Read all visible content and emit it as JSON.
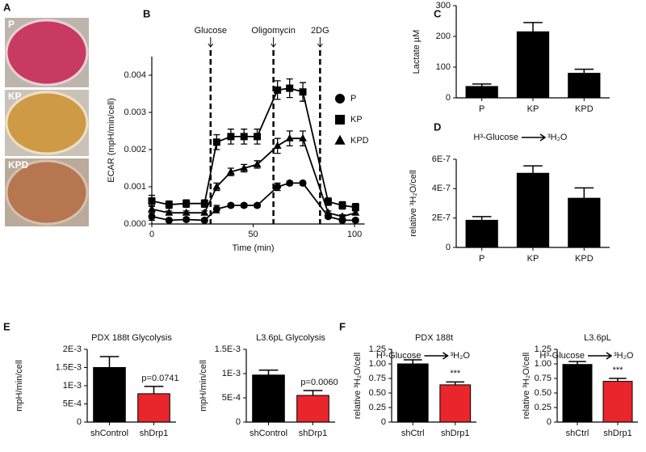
{
  "panels": [
    "A",
    "B",
    "C",
    "D",
    "E",
    "F"
  ],
  "panel_a": {
    "labels": [
      "P",
      "KP",
      "KPD"
    ]
  },
  "chart_data": [
    {
      "type": "line",
      "ylabel": "ECAR (mpH/min/cell)",
      "xlabel": "Time (min)",
      "xlim": [
        0,
        105
      ],
      "xticks": [
        0,
        50,
        100
      ],
      "ylim": [
        0,
        0.0045
      ],
      "yticks": [
        {
          "value": 0,
          "label": "0.000"
        },
        {
          "value": 0.001,
          "label": "0.001"
        },
        {
          "value": 0.002,
          "label": "0.002"
        },
        {
          "value": 0.003,
          "label": "0.003"
        },
        {
          "value": 0.004,
          "label": "0.004"
        }
      ],
      "events": [
        {
          "label": "Glucose",
          "x": 29
        },
        {
          "label": "Oligomycin",
          "x": 60
        },
        {
          "label": "2DG",
          "x": 83
        }
      ],
      "x": [
        0,
        8.5,
        17,
        26,
        32,
        39,
        45.5,
        52,
        62,
        68,
        74.5,
        87,
        94,
        100.5
      ],
      "series": [
        {
          "name": "P",
          "color": "#000000",
          "marker": "circle",
          "values": [
            0.0002,
            0.0001,
            0.00012,
            0.0001,
            0.0004,
            0.0005,
            0.0005,
            0.0005,
            0.001,
            0.0011,
            0.0011,
            0.0002,
            0.0001,
            0.0001
          ],
          "errors": [
            0.0001,
            5e-05,
            5e-05,
            5e-05,
            0.0001,
            5e-05,
            5e-05,
            5e-05,
            0.0001,
            5e-05,
            5e-05,
            5e-05,
            5e-05,
            5e-05
          ]
        },
        {
          "name": "KP",
          "color": "#000000",
          "marker": "square",
          "values": [
            0.00062,
            0.00052,
            0.00055,
            0.00055,
            0.0022,
            0.00235,
            0.00235,
            0.00235,
            0.0036,
            0.00365,
            0.00355,
            0.0006,
            0.0005,
            0.00045
          ],
          "errors": [
            0.00015,
            0.0001,
            0.0001,
            0.0001,
            0.0002,
            0.0002,
            0.0002,
            0.0002,
            0.00025,
            0.00025,
            0.00025,
            0.0001,
            0.0001,
            0.0001
          ]
        },
        {
          "name": "KPD",
          "color": "#000000",
          "marker": "triangle",
          "values": [
            0.0004,
            0.0003,
            0.0003,
            0.0003,
            0.001,
            0.0014,
            0.0015,
            0.0016,
            0.0021,
            0.0023,
            0.0023,
            0.0003,
            0.0002,
            0.0003
          ],
          "errors": [
            0.0001,
            5e-05,
            5e-05,
            5e-05,
            0.0001,
            0.0001,
            0.0001,
            0.0001,
            0.0002,
            0.0002,
            0.0002,
            5e-05,
            5e-05,
            5e-05
          ]
        }
      ]
    },
    {
      "type": "bar",
      "ylabel": "Lactate µM",
      "categories": [
        "P",
        "KP",
        "KPD"
      ],
      "values": [
        37,
        215,
        80
      ],
      "errors": [
        8,
        30,
        13
      ],
      "color": "#000000",
      "ylim": [
        0,
        300
      ],
      "yticks": [
        0,
        100,
        200,
        300
      ]
    },
    {
      "type": "bar",
      "ylabel": "relative ³H₂O/cell",
      "reaction": {
        "from": "H³-Glucose",
        "to": "³H₂O"
      },
      "categories": [
        "P",
        "KP",
        "KPD"
      ],
      "values": [
        1.85e-07,
        5.05e-07,
        3.35e-07
      ],
      "errors": [
        2.5e-08,
        5e-08,
        7e-08
      ],
      "color": "#000000",
      "ylim": [
        0,
        6e-07
      ],
      "yticks": [
        0,
        {
          "value": 2e-07,
          "label": "2E-7"
        },
        {
          "value": 4e-07,
          "label": "4E-7"
        },
        {
          "value": 6e-07,
          "label": "6E-7"
        }
      ]
    },
    {
      "type": "bar",
      "title": "PDX 188t Glycolysis",
      "ylabel": "mpH/min/cell",
      "annotation": "p=0.0741",
      "categories": [
        "shControl",
        "shDrp1"
      ],
      "values": [
        0.0015,
        0.00078
      ],
      "errors": [
        0.0003,
        0.0002
      ],
      "colors": [
        "#000000",
        "#e8262b"
      ],
      "ylim": [
        0,
        0.002
      ],
      "yticks": [
        0,
        {
          "value": 0.0005,
          "label": "5E-4"
        },
        {
          "value": 0.001,
          "label": "1E-3"
        },
        {
          "value": 0.0015,
          "label": "1.5E-3"
        },
        {
          "value": 0.002,
          "label": "2E-3"
        }
      ]
    },
    {
      "type": "bar",
      "title": "L3.6pL Glycolysis",
      "ylabel": "mpH/min/cell",
      "annotation": "p=0.0060",
      "categories": [
        "shControl",
        "shDrp1"
      ],
      "values": [
        0.00097,
        0.00055
      ],
      "errors": [
        0.0001,
        0.0001
      ],
      "colors": [
        "#000000",
        "#e8262b"
      ],
      "ylim": [
        0,
        0.0015
      ],
      "yticks": [
        0,
        {
          "value": 0.0005,
          "label": "5E-4"
        },
        {
          "value": 0.001,
          "label": "1E-3"
        },
        {
          "value": 0.0015,
          "label": "1.5E-3"
        }
      ]
    },
    {
      "type": "bar",
      "title": "PDX 188t",
      "ylabel": "relative ³H₂O/cell",
      "annotation": "***",
      "reaction": {
        "from": "H³-Glucose",
        "to": "³H₂O"
      },
      "categories": [
        "shCtrl",
        "shDrp1"
      ],
      "values": [
        1.0,
        0.64
      ],
      "errors": [
        0.07,
        0.05
      ],
      "colors": [
        "#000000",
        "#e8262b"
      ],
      "ylim": [
        0,
        1.25
      ],
      "yticks": [
        0,
        0.25,
        {
          "value": 0.5,
          "label": "0.50"
        },
        0.75,
        {
          "value": 1,
          "label": "1.00"
        },
        1.25
      ]
    },
    {
      "type": "bar",
      "title": "L3.6pL",
      "ylabel": "relative ³H₂O/cell",
      "annotation": "***",
      "reaction": {
        "from": "H³-Glucose",
        "to": "³H₂O"
      },
      "categories": [
        "shCtrl",
        "shDrp1"
      ],
      "values": [
        0.99,
        0.7
      ],
      "errors": [
        0.05,
        0.05
      ],
      "colors": [
        "#000000",
        "#e8262b"
      ],
      "ylim": [
        0,
        1.25
      ],
      "yticks": [
        0,
        0.25,
        {
          "value": 0.5,
          "label": "0.50"
        },
        0.75,
        {
          "value": 1,
          "label": "1.00"
        },
        1.25
      ]
    }
  ]
}
